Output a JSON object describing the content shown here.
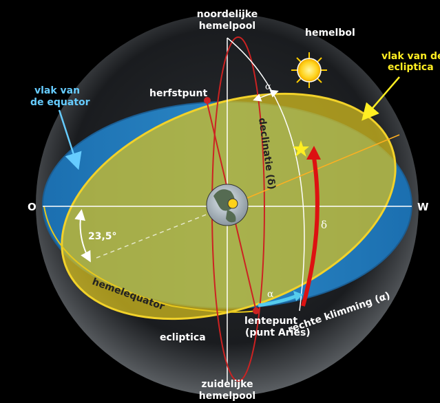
{
  "labels": {
    "north_pole_line1": "noordelijke",
    "north_pole_line2": "hemelpool",
    "south_pole_line1": "zuidelijke",
    "south_pole_line2": "hemelpool",
    "celestial_sphere": "hemelbol",
    "ecliptic_plane_line1": "vlak van de",
    "ecliptic_plane_line2": "ecliptica",
    "equator_plane_line1": "vlak van",
    "equator_plane_line2": "de equator",
    "autumn_point": "herfstpunt",
    "spring_point_line1": "lentepunt",
    "spring_point_line2": "(punt Aries)",
    "declination": "declinatie (δ)",
    "right_ascension": "rechte klimming (α)",
    "celestial_equator": "hemelequator",
    "ecliptic": "ecliptica",
    "east": "O",
    "west": "W",
    "tilt_angle": "23,5°",
    "alpha_top": "α",
    "alpha_bottom": "α",
    "delta": "δ"
  },
  "colors": {
    "background": "#000000",
    "equator_plane": "#1f78b8",
    "ecliptic_plane": "#d9c21f",
    "meridian_red": "#cc2222",
    "highlight_yellow": "#ffee22",
    "label_cyan": "#66ccff",
    "arrow_red": "#dd1111",
    "arrow_cyan": "#55ccee"
  },
  "icons": {
    "sun": "sun-icon",
    "star": "star-icon",
    "earth": "earth-globe-icon"
  }
}
